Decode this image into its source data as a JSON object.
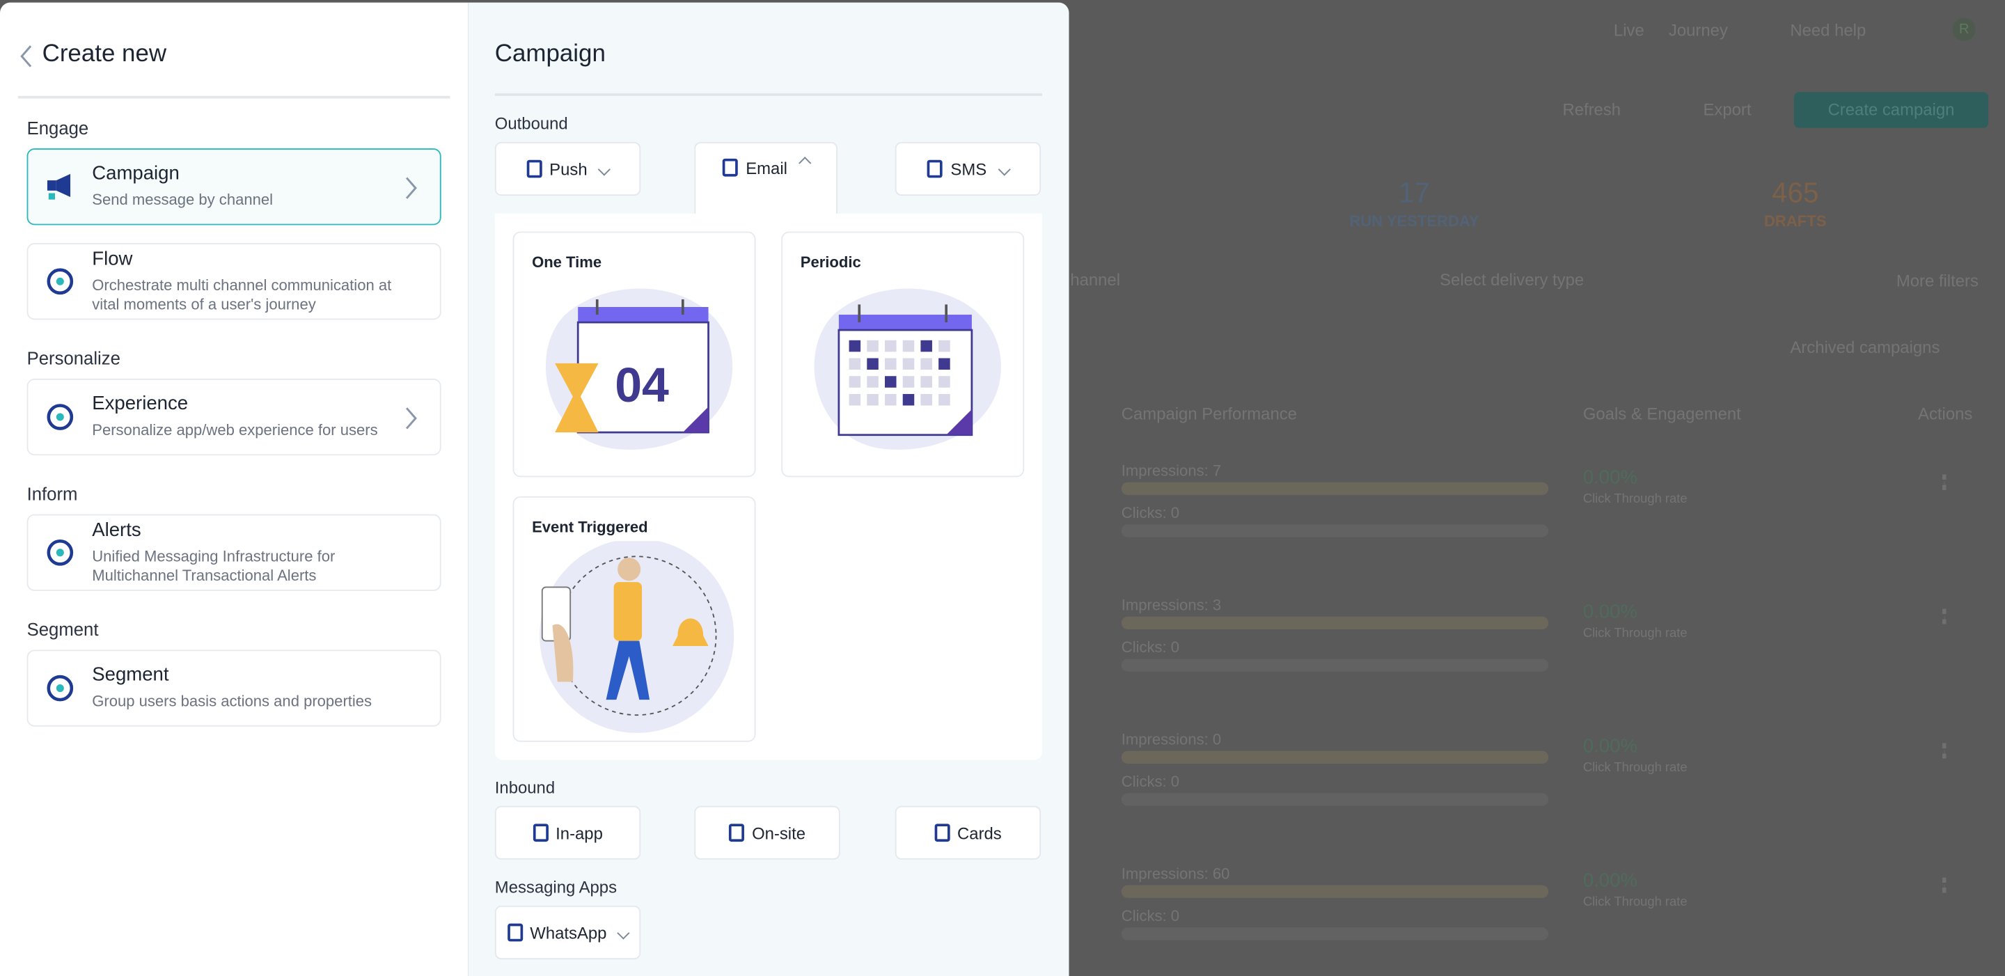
{
  "left_panel": {
    "title": "Create new",
    "sections": [
      {
        "heading": "Engage",
        "items": [
          {
            "title": "Campaign",
            "desc": "Send message by channel"
          },
          {
            "title": "Flow",
            "desc": "Orchestrate multi channel communication at vital moments of a user's journey"
          }
        ]
      },
      {
        "heading": "Personalize",
        "items": [
          {
            "title": "Experience",
            "desc": "Personalize app/web experience for users"
          }
        ]
      },
      {
        "heading": "Inform",
        "items": [
          {
            "title": "Alerts",
            "desc": "Unified Messaging Infrastructure for Multichannel Transactional Alerts"
          }
        ]
      },
      {
        "heading": "Segment",
        "items": [
          {
            "title": "Segment",
            "desc": "Group users basis actions and properties"
          }
        ]
      }
    ]
  },
  "right_panel": {
    "title": "Campaign",
    "outbound_label": "Outbound",
    "outbound_tabs": [
      "Push",
      "Email",
      "SMS"
    ],
    "email_types": [
      "One Time",
      "Periodic",
      "Event Triggered"
    ],
    "calendar_day": "04",
    "inbound_label": "Inbound",
    "inbound_tabs": [
      "In-app",
      "On-site",
      "Cards"
    ],
    "messaging_label": "Messaging Apps",
    "messaging_tabs": [
      "WhatsApp"
    ]
  },
  "background": {
    "top_nav": [
      "Live",
      "Journey",
      "Need help"
    ],
    "avatar": "R",
    "actions": [
      "Refresh",
      "Export",
      "Create campaign"
    ],
    "stats": [
      {
        "value": 17,
        "label": "RUN YESTERDAY"
      },
      {
        "value": 465,
        "label": "DRAFTS"
      }
    ],
    "filters": [
      "hannel",
      "Select delivery type",
      "More filters"
    ],
    "archived": "Archived campaigns",
    "columns": [
      "Campaign Performance",
      "Goals & Engagement",
      "Actions"
    ],
    "rows": [
      {
        "impressions": "Impressions: 7",
        "clicks": "Clicks: 0",
        "rate": "0.00%",
        "rate_label": "Click Through rate"
      },
      {
        "impressions": "Impressions: 3",
        "clicks": "Clicks: 0",
        "rate": "0.00%",
        "rate_label": "Click Through rate"
      },
      {
        "impressions": "Impressions: 0",
        "clicks": "Clicks: 0",
        "rate": "0.00%",
        "rate_label": "Click Through rate"
      },
      {
        "impressions": "Impressions: 60",
        "clicks": "Clicks: 0",
        "rate": "0.00%",
        "rate_label": "Click Through rate"
      }
    ]
  }
}
